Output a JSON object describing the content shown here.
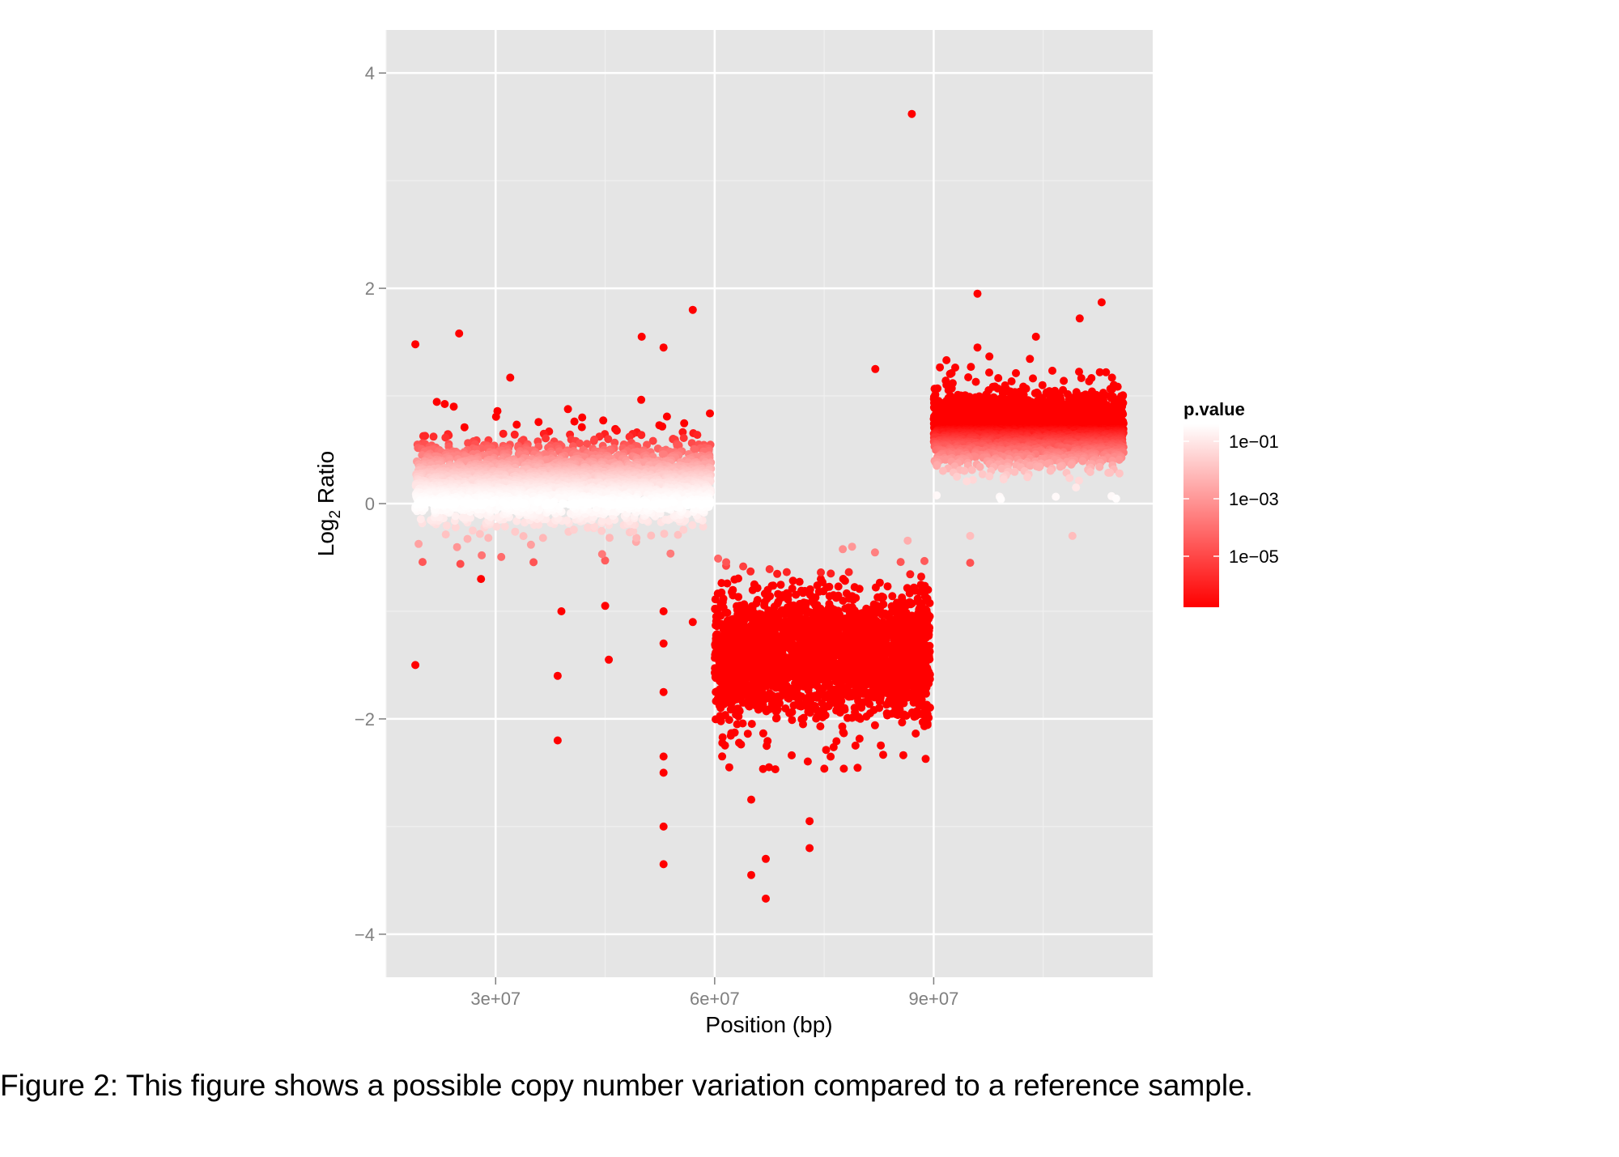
{
  "chart_data": {
    "type": "scatter",
    "xlabel": "Position (bp)",
    "ylabel_main": "Log",
    "ylabel_sub": "2",
    "ylabel_rest": " Ratio",
    "xlim": [
      15000000,
      120000000
    ],
    "ylim": [
      -4.4,
      4.4
    ],
    "x_ticks": [
      30000000,
      60000000,
      90000000
    ],
    "x_tick_labels": [
      "3e+07",
      "6e+07",
      "9e+07"
    ],
    "y_ticks": [
      -4,
      -2,
      0,
      2,
      4
    ],
    "y_tick_labels": [
      "−4",
      "−2",
      "0",
      "2",
      "4"
    ],
    "grid": true,
    "point_color": "#ff0000",
    "panel_color": "#e5e5e5",
    "legend": {
      "title": "p.value",
      "position": "right",
      "labels": [
        "1e−01",
        "1e−03",
        "1e−05"
      ],
      "colors": [
        "#ffffff",
        "#ff0000"
      ]
    },
    "segments": [
      {
        "x_start": 19000000,
        "x_end": 59500000,
        "mean_log2": 0.2,
        "spread": 0.48
      },
      {
        "x_start": 60000000,
        "x_end": 89500000,
        "mean_log2": -1.4,
        "spread": 0.68
      },
      {
        "x_start": 90000000,
        "x_end": 116000000,
        "mean_log2": 0.7,
        "spread": 0.42
      }
    ],
    "outliers": [
      {
        "x": 87000000,
        "y": 3.62
      },
      {
        "x": 82000000,
        "y": 1.25
      },
      {
        "x": 19000000,
        "y": 1.48
      },
      {
        "x": 19000000,
        "y": -1.5
      },
      {
        "x": 25000000,
        "y": 1.58
      },
      {
        "x": 28000000,
        "y": -0.7
      },
      {
        "x": 32000000,
        "y": 1.17
      },
      {
        "x": 38500000,
        "y": -1.6
      },
      {
        "x": 38500000,
        "y": -2.2
      },
      {
        "x": 39000000,
        "y": -1.0
      },
      {
        "x": 45500000,
        "y": -1.45
      },
      {
        "x": 45000000,
        "y": -0.95
      },
      {
        "x": 50000000,
        "y": 1.55
      },
      {
        "x": 53000000,
        "y": 1.45
      },
      {
        "x": 53000000,
        "y": -1.0
      },
      {
        "x": 53000000,
        "y": -1.3
      },
      {
        "x": 53000000,
        "y": -1.75
      },
      {
        "x": 53000000,
        "y": -2.35
      },
      {
        "x": 53000000,
        "y": -2.5
      },
      {
        "x": 53000000,
        "y": -3.0
      },
      {
        "x": 53000000,
        "y": -3.35
      },
      {
        "x": 57000000,
        "y": 1.8
      },
      {
        "x": 57000000,
        "y": -1.1
      },
      {
        "x": 62000000,
        "y": -2.45
      },
      {
        "x": 65000000,
        "y": -2.75
      },
      {
        "x": 65000000,
        "y": -3.45
      },
      {
        "x": 67000000,
        "y": -3.3
      },
      {
        "x": 67000000,
        "y": -3.67
      },
      {
        "x": 73000000,
        "y": -2.95
      },
      {
        "x": 73000000,
        "y": -3.2
      },
      {
        "x": 96000000,
        "y": 1.95
      },
      {
        "x": 96000000,
        "y": 1.45
      },
      {
        "x": 104000000,
        "y": 1.55
      },
      {
        "x": 113000000,
        "y": 1.87
      },
      {
        "x": 110000000,
        "y": 1.72
      },
      {
        "x": 95000000,
        "y": -0.3
      },
      {
        "x": 95000000,
        "y": -0.55
      },
      {
        "x": 109000000,
        "y": -0.3
      }
    ]
  },
  "caption": "Figure 2: This figure shows a possible copy number variation compared to a reference sample."
}
